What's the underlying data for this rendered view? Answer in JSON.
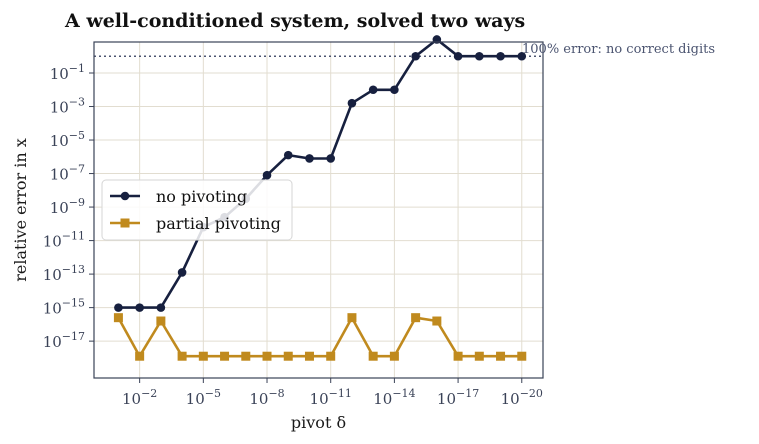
{
  "chart_data": {
    "type": "line",
    "title": "A well-conditioned system, solved two ways",
    "xlabel": "pivot δ",
    "ylabel": "relative error in x",
    "x_scale": "log10",
    "y_scale": "log10",
    "x_log10": [
      -1,
      -2,
      -3,
      -4,
      -5,
      -6,
      -7,
      -8,
      -9,
      -10,
      -11,
      -12,
      -13,
      -14,
      -15,
      -16,
      -17,
      -18,
      -19,
      -20
    ],
    "x_ticks_log10": [
      -2,
      -5,
      -8,
      -11,
      -14,
      -17,
      -20
    ],
    "y_ticks_log10": [
      -1,
      -3,
      -5,
      -7,
      -9,
      -11,
      -13,
      -15,
      -17
    ],
    "xlim_log10": [
      0.15,
      -21
    ],
    "ylim_log10": [
      -19.2,
      0.85
    ],
    "grid": true,
    "legend_position": "center-left",
    "reference_line": {
      "y": 1,
      "label": "100% error: no correct digits"
    },
    "series": [
      {
        "name": "no pivoting",
        "marker": "circle",
        "color": "#17203f",
        "y_log10": [
          -15.0,
          -15.0,
          -15.0,
          -12.9,
          -10.2,
          -9.6,
          -8.5,
          -7.1,
          -5.9,
          -6.1,
          -6.1,
          -2.8,
          -2.0,
          -2.0,
          0.0,
          1.0,
          0.0,
          0.0,
          0.0,
          0.0
        ]
      },
      {
        "name": "partial pivoting",
        "marker": "square",
        "color": "#c08a1e",
        "y_log10": [
          -15.6,
          -17.9,
          -15.8,
          -17.9,
          -17.9,
          -17.9,
          -17.9,
          -17.9,
          -17.9,
          -17.9,
          -17.9,
          -15.6,
          -17.9,
          -17.9,
          -15.6,
          -15.8,
          -17.9,
          -17.9,
          -17.9,
          -17.9
        ]
      }
    ]
  }
}
